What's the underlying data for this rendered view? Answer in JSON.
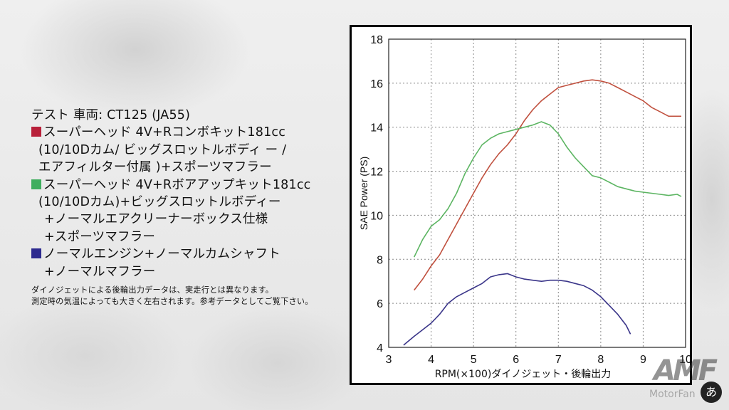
{
  "legend": {
    "title": "テスト 車両: CT125 (JA55)",
    "items": [
      {
        "color": "#b8203a",
        "lines": [
          "スーパーヘッド 4V+Rコンボキット181cc",
          "(10/10Dカム/ ビッグスロットルボディ ー /",
          "エアフィルター付属 )+スポーツマフラー"
        ]
      },
      {
        "color": "#3fae5e",
        "lines": [
          "スーパーヘッド 4V+Rボアアップキット181cc",
          "(10/10Dカム)+ビッグスロットルボディー",
          "+ノーマルエアクリーナーボックス仕様",
          "+スポーツマフラー"
        ]
      },
      {
        "color": "#2d2a8f",
        "lines": [
          "ノーマルエンジン+ノーマルカムシャフト",
          "+ノーマルマフラー"
        ]
      }
    ],
    "note_lines": [
      "ダイノジェットによる後輪出力データは、実走行とは異なります。",
      "測定時の気温によっても大きく左右されます。参考データとしてご覧下さい。"
    ]
  },
  "brand": {
    "logo_text": "AMF",
    "watermark": "MotorFan",
    "badge": "あ"
  },
  "chart_data": {
    "type": "line",
    "xlabel": "RPM(×100)ダイノジェット・後輪出力",
    "ylabel": "SAE Power (PS)",
    "xlim": [
      3,
      10
    ],
    "ylim": [
      4,
      18
    ],
    "x_ticks": [
      3,
      4,
      5,
      6,
      7,
      8,
      9,
      10
    ],
    "y_ticks": [
      4,
      6,
      8,
      10,
      12,
      14,
      16,
      18
    ],
    "grid": true,
    "series": [
      {
        "color": "#c0503e",
        "x": [
          3.6,
          3.8,
          4.0,
          4.2,
          4.4,
          4.6,
          4.8,
          5.0,
          5.2,
          5.4,
          5.6,
          5.8,
          6.0,
          6.2,
          6.4,
          6.6,
          6.8,
          7.0,
          7.2,
          7.4,
          7.6,
          7.8,
          8.0,
          8.2,
          8.4,
          8.6,
          8.8,
          9.0,
          9.2,
          9.4,
          9.6,
          9.8,
          9.9
        ],
        "values": [
          6.6,
          7.1,
          7.7,
          8.2,
          8.9,
          9.6,
          10.3,
          11.0,
          11.7,
          12.3,
          12.8,
          13.2,
          13.7,
          14.3,
          14.8,
          15.2,
          15.5,
          15.8,
          15.9,
          16.0,
          16.1,
          16.15,
          16.1,
          16.0,
          15.8,
          15.6,
          15.4,
          15.2,
          14.9,
          14.7,
          14.5,
          14.5,
          14.5
        ]
      },
      {
        "color": "#5cb562",
        "x": [
          3.6,
          3.8,
          4.0,
          4.2,
          4.4,
          4.6,
          4.8,
          5.0,
          5.2,
          5.4,
          5.6,
          5.8,
          6.0,
          6.2,
          6.4,
          6.6,
          6.8,
          7.0,
          7.2,
          7.4,
          7.6,
          7.8,
          8.0,
          8.2,
          8.4,
          8.6,
          8.8,
          9.0,
          9.2,
          9.4,
          9.6,
          9.8,
          9.9
        ],
        "values": [
          8.1,
          8.9,
          9.5,
          9.8,
          10.3,
          11.0,
          11.9,
          12.6,
          13.2,
          13.5,
          13.7,
          13.8,
          13.9,
          14.0,
          14.1,
          14.25,
          14.1,
          13.7,
          13.1,
          12.6,
          12.2,
          11.8,
          11.7,
          11.5,
          11.3,
          11.2,
          11.1,
          11.05,
          11.0,
          10.95,
          10.9,
          10.95,
          10.85
        ]
      },
      {
        "color": "#3a3589",
        "x": [
          3.35,
          3.6,
          3.8,
          4.0,
          4.2,
          4.4,
          4.6,
          4.8,
          5.0,
          5.2,
          5.4,
          5.6,
          5.8,
          6.0,
          6.2,
          6.4,
          6.6,
          6.8,
          7.0,
          7.2,
          7.4,
          7.6,
          7.8,
          8.0,
          8.2,
          8.4,
          8.6,
          8.7
        ],
        "values": [
          4.1,
          4.5,
          4.8,
          5.1,
          5.5,
          6.0,
          6.3,
          6.5,
          6.7,
          6.9,
          7.2,
          7.3,
          7.35,
          7.2,
          7.1,
          7.05,
          7.0,
          7.05,
          7.05,
          7.0,
          6.9,
          6.8,
          6.6,
          6.3,
          5.9,
          5.5,
          5.0,
          4.6
        ]
      }
    ]
  }
}
